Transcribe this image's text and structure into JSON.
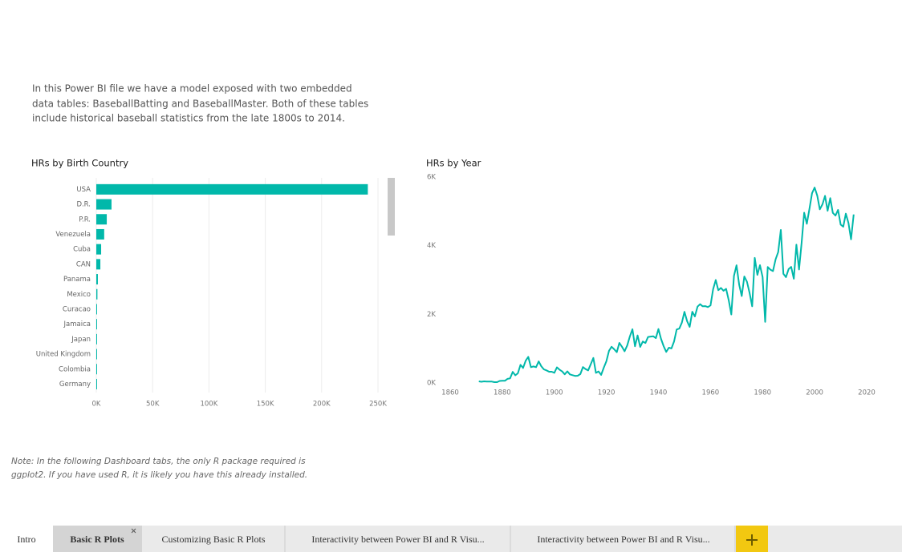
{
  "intro": [
    "In this Power BI file we have a model exposed with two embedded",
    "data tables: BaseballBatting and BaseballMaster.  Both of these tables",
    "include historical baseball statistics from the late 1800s to 2014."
  ],
  "note": [
    "Note: In the following Dashboard tabs, the only R package required is",
    "ggplot2.  If you have used R, it is likely you have this already installed."
  ],
  "tabs": [
    "Intro",
    "Basic R Plots",
    "Customizing Basic R Plots",
    "Interactivity between Power BI and R Visu...",
    "Interactivity between Power BI and R Visu..."
  ],
  "chart_data": [
    {
      "type": "hbar",
      "title": "HRs by Birth Country",
      "color": "#01b8aa",
      "categories": [
        "USA",
        "D.R.",
        "P.R.",
        "Venezuela",
        "Cuba",
        "CAN",
        "Panama",
        "Mexico",
        "Curacao",
        "Jamaica",
        "Japan",
        "United Kingdom",
        "Colombia",
        "Germany"
      ],
      "values": [
        241000,
        13500,
        9300,
        7000,
        4300,
        3600,
        1400,
        1000,
        600,
        400,
        300,
        300,
        300,
        200
      ],
      "xlim": [
        0,
        250000
      ],
      "xticks": [
        {
          "value": 0,
          "label": "0K"
        },
        {
          "value": 50000,
          "label": "50K"
        },
        {
          "value": 100000,
          "label": "100K"
        },
        {
          "value": 150000,
          "label": "150K"
        },
        {
          "value": 200000,
          "label": "200K"
        },
        {
          "value": 250000,
          "label": "250K"
        }
      ],
      "grid": true
    },
    {
      "type": "line",
      "title": "HRs by Year",
      "color": "#01b8aa",
      "x": [
        1871,
        1872,
        1873,
        1874,
        1875,
        1876,
        1877,
        1878,
        1879,
        1880,
        1881,
        1882,
        1883,
        1884,
        1885,
        1886,
        1887,
        1888,
        1889,
        1890,
        1891,
        1892,
        1893,
        1894,
        1895,
        1896,
        1897,
        1898,
        1899,
        1900,
        1901,
        1902,
        1903,
        1904,
        1905,
        1906,
        1907,
        1908,
        1909,
        1910,
        1911,
        1912,
        1913,
        1914,
        1915,
        1916,
        1917,
        1918,
        1919,
        1920,
        1921,
        1922,
        1923,
        1924,
        1925,
        1926,
        1927,
        1928,
        1929,
        1930,
        1931,
        1932,
        1933,
        1934,
        1935,
        1936,
        1937,
        1938,
        1939,
        1940,
        1941,
        1942,
        1943,
        1944,
        1945,
        1946,
        1947,
        1948,
        1949,
        1950,
        1951,
        1952,
        1953,
        1954,
        1955,
        1956,
        1957,
        1958,
        1959,
        1960,
        1961,
        1962,
        1963,
        1964,
        1965,
        1966,
        1967,
        1968,
        1969,
        1970,
        1971,
        1972,
        1973,
        1974,
        1975,
        1976,
        1977,
        1978,
        1979,
        1980,
        1981,
        1982,
        1983,
        1984,
        1985,
        1986,
        1987,
        1988,
        1989,
        1990,
        1991,
        1992,
        1993,
        1994,
        1995,
        1996,
        1997,
        1998,
        1999,
        2000,
        2001,
        2002,
        2003,
        2004,
        2005,
        2006,
        2007,
        2008,
        2009,
        2010,
        2011,
        2012,
        2013,
        2014,
        2015
      ],
      "values": [
        47,
        35,
        46,
        40,
        40,
        40,
        24,
        23,
        58,
        62,
        64,
        120,
        132,
        322,
        223,
        281,
        528,
        436,
        649,
        760,
        461,
        480,
        460,
        629,
        488,
        395,
        367,
        327,
        326,
        296,
        455,
        388,
        336,
        252,
        338,
        249,
        226,
        206,
        209,
        260,
        462,
        403,
        367,
        549,
        728,
        293,
        335,
        235,
        447,
        630,
        937,
        1055,
        980,
        896,
        1167,
        1054,
        922,
        1093,
        1349,
        1565,
        1069,
        1385,
        1051,
        1208,
        1166,
        1341,
        1351,
        1362,
        1307,
        1571,
        1287,
        1071,
        905,
        1027,
        1007,
        1212,
        1557,
        1586,
        1758,
        2073,
        1803,
        1635,
        2076,
        1937,
        2224,
        2294,
        2234,
        2240,
        2210,
        2260,
        2730,
        3001,
        2704,
        2770,
        2688,
        2743,
        2409,
        1995,
        3119,
        3429,
        2863,
        2534,
        3102,
        2949,
        2631,
        2235,
        3644,
        3149,
        3433,
        3087,
        1781,
        3379,
        3301,
        3258,
        3602,
        3813,
        4458,
        3180,
        3083,
        3317,
        3383,
        3038,
        4030,
        3306,
        4081,
        4962,
        4640,
        5064,
        5528,
        5693,
        5458,
        5059,
        5207,
        5451,
        5017,
        5386,
        4957,
        4878,
        5042,
        4613,
        4552,
        4934,
        4661,
        4186,
        4909
      ],
      "xlim": [
        1860,
        2020
      ],
      "xticks": [
        1860,
        1880,
        1900,
        1920,
        1940,
        1960,
        1980,
        2000,
        2020
      ],
      "ylim": [
        0,
        6000
      ],
      "yticks": [
        {
          "value": 0,
          "label": "0K"
        },
        {
          "value": 2000,
          "label": "2K"
        },
        {
          "value": 4000,
          "label": "4K"
        },
        {
          "value": 6000,
          "label": "6K"
        }
      ]
    }
  ]
}
